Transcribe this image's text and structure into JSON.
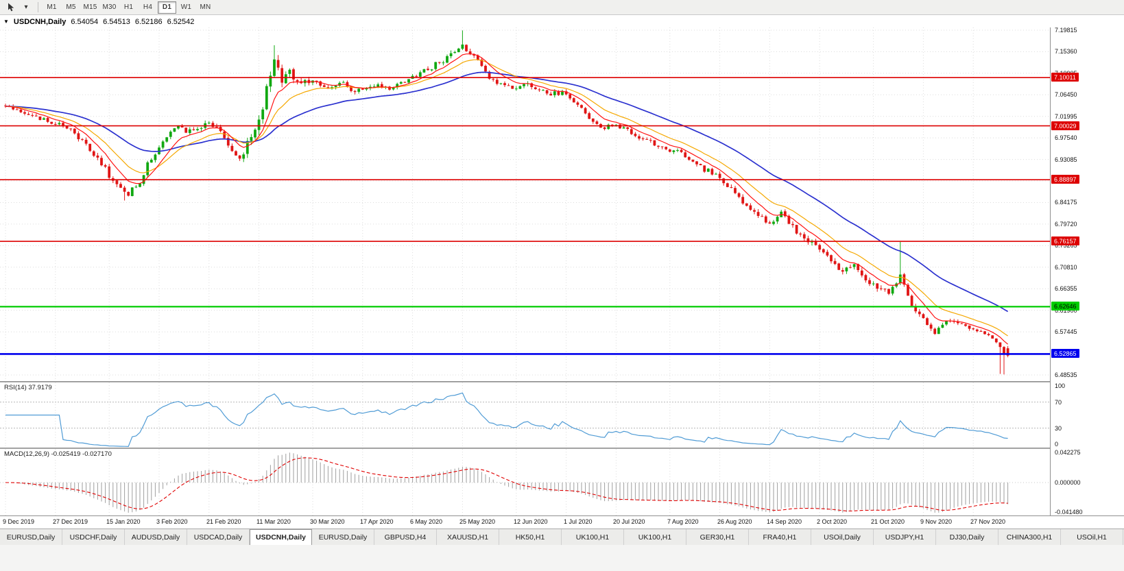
{
  "toolbar": {
    "timeframes": [
      "M1",
      "M5",
      "M15",
      "M30",
      "H1",
      "H4",
      "D1",
      "W1",
      "MN"
    ],
    "active_timeframe": "D1"
  },
  "chart_header": {
    "symbol_title": "USDCNH,Daily",
    "open": "6.54054",
    "high": "6.54513",
    "low": "6.52186",
    "close": "6.52542"
  },
  "price_axis": {
    "labels": [
      "7.19815",
      "7.15360",
      "7.10905",
      "7.06450",
      "7.01995",
      "6.97540",
      "6.93085",
      "6.88630",
      "6.84175",
      "6.79720",
      "6.75265",
      "6.70810",
      "6.66355",
      "6.61900",
      "6.57445",
      "6.52990",
      "6.48535"
    ]
  },
  "rsi": {
    "label": "RSI(14) 37.9179",
    "period": 14,
    "value": "37.9179",
    "levels": [
      70,
      30
    ],
    "axis_labels": [
      {
        "v": 100,
        "t": "100"
      },
      {
        "v": 70,
        "t": "70"
      },
      {
        "v": 30,
        "t": "30"
      },
      {
        "v": 0,
        "t": "0"
      }
    ],
    "color": "#4f9bd5"
  },
  "macd": {
    "label": "MACD(12,26,9) -0.025419 -0.027170",
    "fast": 12,
    "slow": 26,
    "signal": 9,
    "main_value": "-0.025419",
    "signal_value": "-0.027170",
    "range": {
      "max": 0.042275,
      "min": -0.04148
    },
    "axis_labels": [
      {
        "v": 0.042275,
        "t": "0.042275"
      },
      {
        "v": 0,
        "t": "0.000000"
      },
      {
        "v": -0.04148,
        "t": "-0.041480"
      }
    ],
    "hist_color": "#9e9e9e",
    "signal_color": "#e00000"
  },
  "date_axis": {
    "labels": [
      "9 Dec 2019",
      "27 Dec 2019",
      "15 Jan 2020",
      "3 Feb 2020",
      "21 Feb 2020",
      "11 Mar 2020",
      "30 Mar 2020",
      "17 Apr 2020",
      "6 May 2020",
      "25 May 2020",
      "12 Jun 2020",
      "1 Jul 2020",
      "20 Jul 2020",
      "7 Aug 2020",
      "26 Aug 2020",
      "14 Sep 2020",
      "2 Oct 2020",
      "21 Oct 2020",
      "9 Nov 2020",
      "27 Nov 2020"
    ]
  },
  "tabs": {
    "items": [
      "EURUSD,Daily",
      "USDCHF,Daily",
      "AUDUSD,Daily",
      "USDCAD,Daily",
      "USDCNH,Daily",
      "EURUSD,Daily",
      "GBPUSD,H4",
      "XAUUSD,H1",
      "HK50,H1",
      "UK100,H1",
      "UK100,H1",
      "GER30,H1",
      "FRA40,H1",
      "USOil,Daily",
      "USDJPY,H1",
      "DJ30,Daily",
      "CHINA300,H1",
      "USOil,H1"
    ],
    "active_index": 4
  },
  "chart_data": {
    "type": "candlestick",
    "symbol": "USDCNH",
    "timeframe": "Daily",
    "bar_count": 262,
    "seed": 77,
    "price_range": {
      "top": 7.2038,
      "bottom": 6.4726
    },
    "date_indices": [
      0,
      13,
      27,
      40,
      53,
      66,
      80,
      93,
      106,
      119,
      133,
      146,
      159,
      173,
      186,
      199,
      212,
      226,
      239,
      252
    ],
    "close_anchors": [
      [
        0,
        7.04
      ],
      [
        5,
        7.026
      ],
      [
        13,
        7.006
      ],
      [
        18,
        6.985
      ],
      [
        22,
        6.95
      ],
      [
        26,
        6.91
      ],
      [
        29,
        6.876
      ],
      [
        32,
        6.858
      ],
      [
        35,
        6.886
      ],
      [
        38,
        6.936
      ],
      [
        42,
        6.975
      ],
      [
        45,
        7.002
      ],
      [
        47,
        6.99
      ],
      [
        53,
        7.004
      ],
      [
        56,
        6.988
      ],
      [
        59,
        6.944
      ],
      [
        61,
        6.93
      ],
      [
        63,
        6.962
      ],
      [
        65,
        7.0
      ],
      [
        67,
        7.045
      ],
      [
        69,
        7.11
      ],
      [
        70,
        7.135
      ],
      [
        72,
        7.09
      ],
      [
        74,
        7.112
      ],
      [
        76,
        7.096
      ],
      [
        80,
        7.094
      ],
      [
        84,
        7.08
      ],
      [
        88,
        7.094
      ],
      [
        91,
        7.07
      ],
      [
        94,
        7.078
      ],
      [
        97,
        7.088
      ],
      [
        100,
        7.072
      ],
      [
        103,
        7.09
      ],
      [
        106,
        7.1
      ],
      [
        110,
        7.118
      ],
      [
        114,
        7.136
      ],
      [
        117,
        7.152
      ],
      [
        119,
        7.162
      ],
      [
        121,
        7.15
      ],
      [
        124,
        7.122
      ],
      [
        127,
        7.092
      ],
      [
        133,
        7.076
      ],
      [
        136,
        7.09
      ],
      [
        139,
        7.076
      ],
      [
        142,
        7.066
      ],
      [
        146,
        7.07
      ],
      [
        149,
        7.044
      ],
      [
        152,
        7.012
      ],
      [
        155,
        6.996
      ],
      [
        159,
        7.0
      ],
      [
        162,
        6.99
      ],
      [
        165,
        6.972
      ],
      [
        168,
        6.966
      ],
      [
        173,
        6.95
      ],
      [
        176,
        6.944
      ],
      [
        179,
        6.922
      ],
      [
        182,
        6.91
      ],
      [
        186,
        6.896
      ],
      [
        189,
        6.87
      ],
      [
        192,
        6.844
      ],
      [
        195,
        6.82
      ],
      [
        199,
        6.8
      ],
      [
        202,
        6.82
      ],
      [
        205,
        6.79
      ],
      [
        208,
        6.77
      ],
      [
        212,
        6.744
      ],
      [
        215,
        6.72
      ],
      [
        218,
        6.698
      ],
      [
        221,
        6.712
      ],
      [
        224,
        6.682
      ],
      [
        227,
        6.662
      ],
      [
        230,
        6.656
      ],
      [
        232,
        6.674
      ],
      [
        233,
        6.69
      ],
      [
        235,
        6.648
      ],
      [
        237,
        6.62
      ],
      [
        239,
        6.598
      ],
      [
        241,
        6.578
      ],
      [
        242,
        6.572
      ],
      [
        244,
        6.592
      ],
      [
        245,
        6.602
      ],
      [
        248,
        6.588
      ],
      [
        251,
        6.584
      ],
      [
        254,
        6.576
      ],
      [
        257,
        6.56
      ],
      [
        259,
        6.545
      ],
      [
        260,
        6.532
      ],
      [
        261,
        6.52542
      ]
    ],
    "noise_anchors": [
      [
        0,
        0.006
      ],
      [
        22,
        0.007
      ],
      [
        31,
        0.008
      ],
      [
        47,
        0.006
      ],
      [
        59,
        0.009
      ],
      [
        66,
        0.016
      ],
      [
        70,
        0.02
      ],
      [
        75,
        0.012
      ],
      [
        80,
        0.008
      ],
      [
        106,
        0.006
      ],
      [
        119,
        0.009
      ],
      [
        124,
        0.007
      ],
      [
        146,
        0.006
      ],
      [
        175,
        0.006
      ],
      [
        196,
        0.008
      ],
      [
        216,
        0.008
      ],
      [
        233,
        0.008
      ],
      [
        248,
        0.006
      ],
      [
        261,
        0.004
      ]
    ],
    "spikes": [
      {
        "i": 119,
        "high": 7.1975
      },
      {
        "i": 70,
        "high": 7.167
      },
      {
        "i": 31,
        "low": 6.846
      },
      {
        "i": 233,
        "high": 6.7605
      },
      {
        "i": 259,
        "low": 6.4875
      },
      {
        "i": 260,
        "low": 6.4865
      }
    ],
    "last_bar": {
      "open": 6.54054,
      "high": 6.54513,
      "low": 6.52186,
      "close": 6.52542
    },
    "price_lines": [
      {
        "label": "7.10011",
        "price": 7.10011,
        "color": "#dd0000",
        "width": 1.6,
        "text": "#ffffff"
      },
      {
        "label": "7.00029",
        "price": 7.00029,
        "color": "#dd0000",
        "width": 1.6,
        "text": "#ffffff"
      },
      {
        "label": "6.88897",
        "price": 6.88897,
        "color": "#dd0000",
        "width": 1.6,
        "text": "#ffffff"
      },
      {
        "label": "6.76157",
        "price": 6.76157,
        "color": "#dd0000",
        "width": 1.6,
        "text": "#ffffff"
      },
      {
        "label": "6.62646",
        "price": 6.62646,
        "color": "#00cc00",
        "width": 2.2,
        "text": "#000000"
      },
      {
        "label": "6.52865",
        "price": 6.52865,
        "color": "#0000ee",
        "width": 2.6,
        "text": "#ffffff"
      }
    ],
    "ma_periods": {
      "fast": 8,
      "mid": 16,
      "slow": 40
    },
    "colors": {
      "up": "#11a811",
      "down": "#e01515",
      "grid": "#dcdcdc",
      "ma_fast": "#ff1111",
      "ma_mid": "#f5a800",
      "ma_slow": "#2b31cf"
    }
  }
}
